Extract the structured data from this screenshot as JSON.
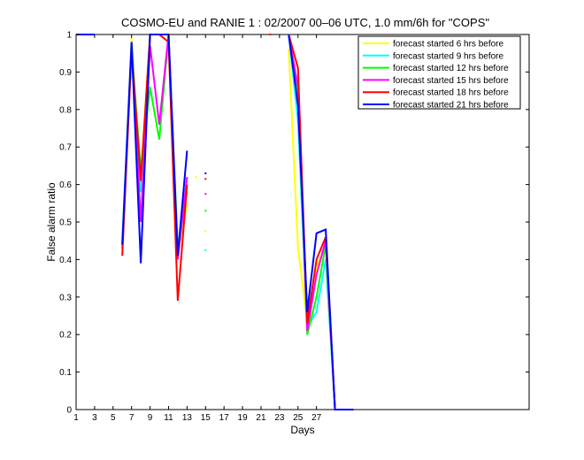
{
  "chart_data": {
    "type": "line",
    "title": "COSMO-EU and RANIE 1 : 02/2007 00–06 UTC, 1.0 mm/6h for \"COPS\"",
    "xlabel": "Days",
    "ylabel": "False alarm ratio",
    "xlim": [
      1,
      50
    ],
    "ylim": [
      0,
      1
    ],
    "xticks": [
      1,
      3,
      5,
      7,
      9,
      11,
      13,
      15,
      17,
      19,
      21,
      23,
      25,
      27
    ],
    "yticks": [
      0,
      0.1,
      0.2,
      0.3,
      0.4,
      0.5,
      0.6,
      0.7,
      0.8,
      0.9,
      1
    ],
    "ytick_labels": [
      "0",
      "0.1",
      "0.2",
      "0.3",
      "0.4",
      "0.5",
      "0.6",
      "0.7",
      "0.8",
      "0.9",
      "1"
    ],
    "legend_position": "top-right",
    "grid": false,
    "series": [
      {
        "name": "forecast started 6 hrs before",
        "color": "#ffff00",
        "segments": [
          [
            [
              1,
              1
            ],
            [
              3,
              1
            ]
          ],
          [
            [
              6,
              0.44
            ],
            [
              7,
              0.99
            ],
            [
              8,
              0.62
            ],
            [
              9,
              1
            ],
            [
              10,
              1
            ],
            [
              11,
              1
            ],
            [
              12,
              0.41
            ],
            [
              13,
              0.55
            ]
          ],
          [
            [
              24,
              0.96
            ],
            [
              25,
              0.43
            ],
            [
              26,
              0.24
            ],
            [
              27,
              0.38
            ],
            [
              28,
              0.44
            ],
            [
              29,
              0
            ],
            [
              31,
              0
            ]
          ]
        ],
        "points": [
          [
            14,
            0.62
          ],
          [
            15,
            0.475
          ]
        ]
      },
      {
        "name": "forecast started 9 hrs before",
        "color": "#00ffff",
        "segments": [
          [
            [
              1,
              1
            ],
            [
              3,
              1
            ]
          ],
          [
            [
              6,
              0.45
            ],
            [
              7,
              0.98
            ],
            [
              8,
              0.58
            ],
            [
              9,
              1
            ],
            [
              10,
              1
            ],
            [
              11,
              1
            ],
            [
              12,
              0.42
            ],
            [
              13,
              0.62
            ]
          ],
          [
            [
              24,
              1
            ],
            [
              25,
              0.77
            ],
            [
              26,
              0.22
            ],
            [
              27,
              0.26
            ],
            [
              28,
              0.4
            ],
            [
              29,
              0
            ],
            [
              31,
              0
            ]
          ]
        ],
        "points": [
          [
            15,
            0.425
          ]
        ]
      },
      {
        "name": "forecast started 12 hrs before",
        "color": "#00ff00",
        "segments": [
          [
            [
              1,
              1
            ],
            [
              3,
              1
            ]
          ],
          [
            [
              6,
              0.44
            ],
            [
              7,
              0.96
            ],
            [
              8,
              0.64
            ],
            [
              9,
              0.86
            ],
            [
              10,
              0.72
            ],
            [
              11,
              1
            ],
            [
              12,
              0.43
            ],
            [
              13,
              0.58
            ]
          ],
          [
            [
              24,
              1
            ],
            [
              25,
              0.83
            ],
            [
              26,
              0.2
            ],
            [
              27,
              0.3
            ],
            [
              28,
              0.44
            ],
            [
              29,
              0
            ],
            [
              31,
              0
            ]
          ]
        ],
        "points": [
          [
            15,
            0.53
          ]
        ]
      },
      {
        "name": "forecast started 15 hrs before",
        "color": "#ff00ff",
        "segments": [
          [
            [
              1,
              1
            ],
            [
              3,
              1
            ]
          ],
          [
            [
              6,
              0.43
            ],
            [
              7,
              0.97
            ],
            [
              8,
              0.5
            ],
            [
              9,
              0.97
            ],
            [
              10,
              0.76
            ],
            [
              11,
              1
            ],
            [
              12,
              0.4
            ],
            [
              13,
              0.62
            ]
          ],
          [
            [
              24,
              1
            ],
            [
              25,
              0.86
            ],
            [
              26,
              0.21
            ],
            [
              27,
              0.36
            ],
            [
              28,
              0.45
            ],
            [
              29,
              0
            ],
            [
              31,
              0
            ]
          ]
        ],
        "points": [
          [
            15,
            0.575
          ]
        ]
      },
      {
        "name": "forecast started 18 hrs before",
        "color": "#ff0000",
        "segments": [
          [
            [
              1,
              1
            ],
            [
              3,
              1
            ]
          ],
          [
            [
              6,
              0.41
            ],
            [
              7,
              0.96
            ],
            [
              8,
              0.61
            ],
            [
              9,
              1
            ],
            [
              10,
              1
            ],
            [
              11,
              0.98
            ],
            [
              12,
              0.29
            ],
            [
              13,
              0.6
            ]
          ],
          [
            [
              24,
              1
            ],
            [
              25,
              0.91
            ],
            [
              26,
              0.23
            ],
            [
              27,
              0.4
            ],
            [
              28,
              0.46
            ],
            [
              29,
              0
            ],
            [
              31,
              0
            ]
          ]
        ],
        "points": [
          [
            15,
            0.615
          ],
          [
            22,
            1
          ]
        ]
      },
      {
        "name": "forecast started 21 hrs before",
        "color": "#0000ff",
        "segments": [
          [
            [
              1,
              1
            ],
            [
              3,
              1
            ]
          ],
          [
            [
              6,
              0.44
            ],
            [
              7,
              0.98
            ],
            [
              8,
              0.39
            ],
            [
              9,
              1
            ],
            [
              10,
              1
            ],
            [
              11,
              1
            ],
            [
              12,
              0.41
            ],
            [
              13,
              0.69
            ]
          ],
          [
            [
              24,
              1
            ],
            [
              25,
              0.81
            ],
            [
              26,
              0.26
            ],
            [
              27,
              0.47
            ],
            [
              28,
              0.48
            ],
            [
              29,
              0
            ],
            [
              31,
              0
            ]
          ]
        ],
        "points": [
          [
            15,
            0.63
          ]
        ]
      }
    ]
  }
}
